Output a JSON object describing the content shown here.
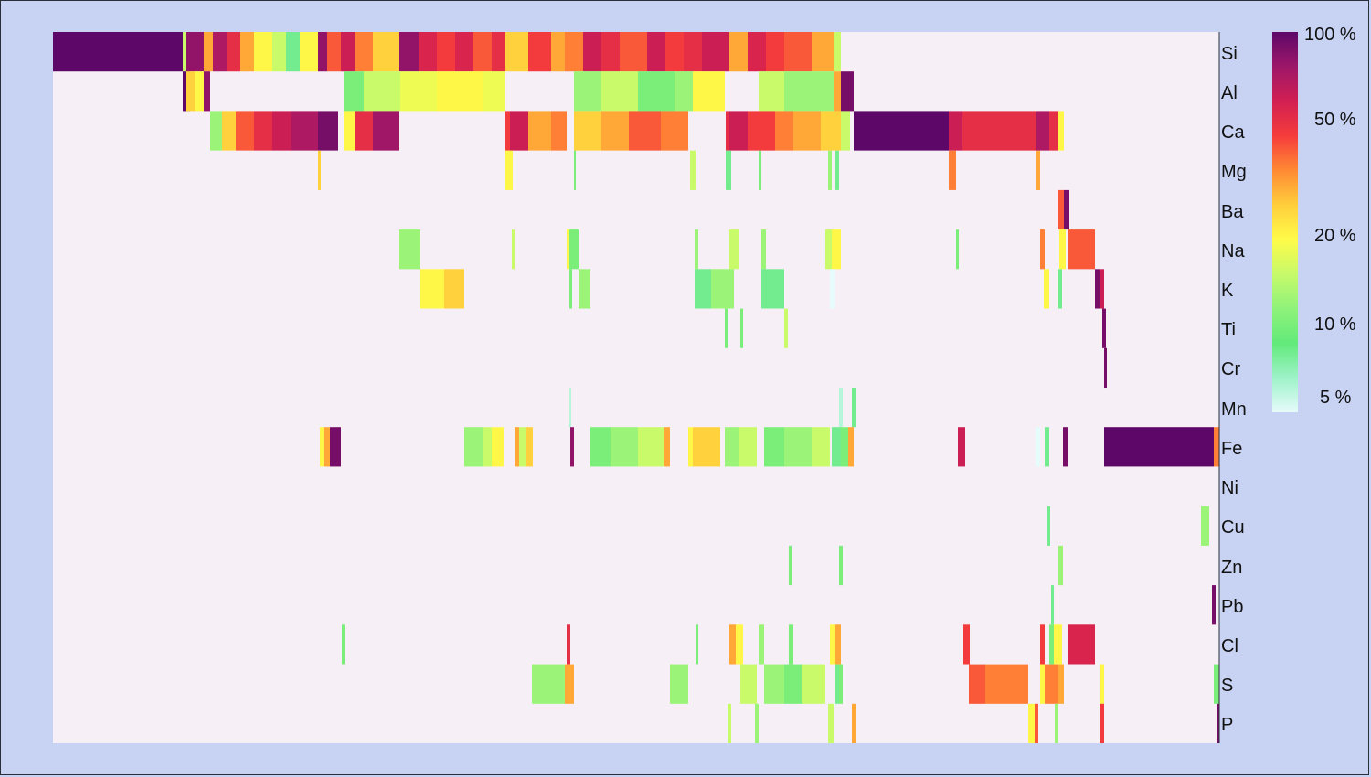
{
  "chart_data": {
    "type": "heatmap",
    "title": "",
    "xlabel": "",
    "ylabel": "",
    "rows": [
      "Si",
      "Al",
      "Ca",
      "Mg",
      "Ba",
      "Na",
      "K",
      "Ti",
      "Cr",
      "Mn",
      "Fe",
      "Ni",
      "Cu",
      "Zn",
      "Pb",
      "Cl",
      "S",
      "P"
    ],
    "x_extent": [
      0,
      1276
    ],
    "value_units": "percent",
    "color_scale": {
      "type": "log",
      "range": [
        5,
        100
      ],
      "ticks": [
        {
          "value": 100,
          "label": "100 %"
        },
        {
          "value": 50,
          "label": "50 %"
        },
        {
          "value": 20,
          "label": "20 %"
        },
        {
          "value": 10,
          "label": "10 %"
        },
        {
          "value": 5,
          "label": "5 %"
        }
      ],
      "colors": [
        "#e6fbfb",
        "#9df2c8",
        "#62ea7a",
        "#8ff27a",
        "#c7fa6a",
        "#fffb48",
        "#ffce3c",
        "#ff8a34",
        "#f53c3c",
        "#d21f52",
        "#9d1769",
        "#5d0868"
      ]
    },
    "segments": {
      "Si": [
        [
          0,
          142,
          100
        ],
        [
          142,
          145,
          15
        ],
        [
          145,
          165,
          80
        ],
        [
          165,
          175,
          30
        ],
        [
          175,
          190,
          70
        ],
        [
          190,
          205,
          50
        ],
        [
          205,
          220,
          30
        ],
        [
          220,
          240,
          20
        ],
        [
          240,
          255,
          15
        ],
        [
          255,
          270,
          8
        ],
        [
          270,
          290,
          20
        ],
        [
          290,
          300,
          80
        ],
        [
          300,
          315,
          40
        ],
        [
          315,
          330,
          60
        ],
        [
          330,
          350,
          35
        ],
        [
          350,
          378,
          25
        ],
        [
          378,
          400,
          80
        ],
        [
          400,
          420,
          55
        ],
        [
          420,
          440,
          45
        ],
        [
          440,
          460,
          55
        ],
        [
          460,
          480,
          40
        ],
        [
          480,
          495,
          50
        ],
        [
          495,
          520,
          25
        ],
        [
          520,
          545,
          45
        ],
        [
          545,
          560,
          30
        ],
        [
          560,
          580,
          35
        ],
        [
          580,
          600,
          60
        ],
        [
          600,
          620,
          50
        ],
        [
          620,
          650,
          40
        ],
        [
          650,
          670,
          60
        ],
        [
          670,
          690,
          45
        ],
        [
          690,
          710,
          50
        ],
        [
          710,
          740,
          60
        ],
        [
          740,
          760,
          30
        ],
        [
          760,
          780,
          55
        ],
        [
          780,
          800,
          45
        ],
        [
          800,
          830,
          40
        ],
        [
          830,
          855,
          30
        ],
        [
          855,
          862,
          15
        ]
      ],
      "Al": [
        [
          142,
          150,
          100
        ],
        [
          145,
          155,
          25
        ],
        [
          155,
          165,
          20
        ],
        [
          165,
          172,
          80
        ],
        [
          318,
          340,
          10
        ],
        [
          340,
          380,
          15
        ],
        [
          380,
          420,
          18
        ],
        [
          420,
          450,
          20
        ],
        [
          450,
          470,
          20
        ],
        [
          470,
          495,
          18
        ],
        [
          570,
          600,
          12
        ],
        [
          600,
          640,
          15
        ],
        [
          640,
          680,
          10
        ],
        [
          680,
          700,
          12
        ],
        [
          700,
          735,
          20
        ],
        [
          772,
          800,
          15
        ],
        [
          800,
          830,
          12
        ],
        [
          830,
          855,
          12
        ],
        [
          855,
          862,
          30
        ],
        [
          862,
          876,
          90
        ]
      ],
      "Ca": [
        [
          172,
          185,
          12
        ],
        [
          185,
          200,
          25
        ],
        [
          200,
          220,
          40
        ],
        [
          220,
          240,
          50
        ],
        [
          240,
          260,
          60
        ],
        [
          260,
          290,
          70
        ],
        [
          290,
          312,
          90
        ],
        [
          318,
          330,
          20
        ],
        [
          330,
          350,
          50
        ],
        [
          350,
          378,
          75
        ],
        [
          495,
          500,
          45
        ],
        [
          500,
          520,
          60
        ],
        [
          520,
          545,
          30
        ],
        [
          545,
          562,
          35
        ],
        [
          570,
          600,
          25
        ],
        [
          600,
          630,
          30
        ],
        [
          630,
          665,
          40
        ],
        [
          665,
          695,
          35
        ],
        [
          736,
          740,
          50
        ],
        [
          740,
          760,
          60
        ],
        [
          760,
          790,
          45
        ],
        [
          790,
          810,
          35
        ],
        [
          810,
          840,
          30
        ],
        [
          840,
          862,
          25
        ],
        [
          862,
          872,
          15
        ],
        [
          876,
          980,
          100
        ],
        [
          980,
          995,
          60
        ],
        [
          995,
          1075,
          50
        ],
        [
          1075,
          1090,
          70
        ],
        [
          1090,
          1100,
          50
        ],
        [
          1100,
          1106,
          20
        ]
      ],
      "Mg": [
        [
          290,
          293,
          25
        ],
        [
          495,
          503,
          20
        ],
        [
          570,
          572,
          10
        ],
        [
          697,
          703,
          15
        ],
        [
          736,
          742,
          8
        ],
        [
          772,
          775,
          10
        ],
        [
          848,
          852,
          12
        ],
        [
          856,
          860,
          8
        ],
        [
          980,
          988,
          35
        ],
        [
          1076,
          1080,
          30
        ]
      ],
      "Ba": [
        [
          1100,
          1106,
          40
        ],
        [
          1106,
          1112,
          90
        ]
      ],
      "Na": [
        [
          378,
          402,
          12
        ],
        [
          502,
          505,
          15
        ],
        [
          562,
          565,
          20
        ],
        [
          565,
          575,
          10
        ],
        [
          702,
          706,
          12
        ],
        [
          740,
          750,
          15
        ],
        [
          775,
          780,
          12
        ],
        [
          845,
          852,
          15
        ],
        [
          852,
          862,
          20
        ],
        [
          988,
          991,
          10
        ],
        [
          1080,
          1085,
          35
        ],
        [
          1101,
          1108,
          20
        ],
        [
          1110,
          1140,
          40
        ]
      ],
      "K": [
        [
          402,
          428,
          20
        ],
        [
          428,
          450,
          25
        ],
        [
          565,
          568,
          10
        ],
        [
          575,
          588,
          12
        ],
        [
          702,
          720,
          8
        ],
        [
          720,
          745,
          12
        ],
        [
          775,
          800,
          8
        ],
        [
          850,
          856,
          5
        ],
        [
          1084,
          1090,
          20
        ],
        [
          1100,
          1104,
          8
        ],
        [
          1140,
          1145,
          90
        ],
        [
          1145,
          1150,
          60
        ]
      ],
      "Ti": [
        [
          735,
          738,
          10
        ],
        [
          752,
          755,
          10
        ],
        [
          800,
          804,
          15
        ],
        [
          1148,
          1152,
          90
        ]
      ],
      "Cr": [
        [
          1150,
          1153,
          90
        ]
      ],
      "Mn": [
        [
          564,
          567,
          6
        ],
        [
          860,
          864,
          6
        ],
        [
          874,
          878,
          8
        ]
      ],
      "Fe": [
        [
          292,
          296,
          20
        ],
        [
          296,
          303,
          30
        ],
        [
          303,
          315,
          90
        ],
        [
          450,
          470,
          12
        ],
        [
          470,
          480,
          15
        ],
        [
          480,
          493,
          20
        ],
        [
          505,
          510,
          30
        ],
        [
          510,
          518,
          15
        ],
        [
          518,
          525,
          25
        ],
        [
          566,
          570,
          80
        ],
        [
          588,
          610,
          10
        ],
        [
          610,
          640,
          12
        ],
        [
          640,
          668,
          15
        ],
        [
          668,
          675,
          30
        ],
        [
          695,
          700,
          20
        ],
        [
          700,
          730,
          25
        ],
        [
          735,
          750,
          12
        ],
        [
          750,
          770,
          15
        ],
        [
          778,
          800,
          10
        ],
        [
          800,
          830,
          12
        ],
        [
          830,
          850,
          15
        ],
        [
          852,
          862,
          8
        ],
        [
          862,
          870,
          10
        ],
        [
          870,
          876,
          30
        ],
        [
          990,
          998,
          60
        ],
        [
          1075,
          1080,
          5
        ],
        [
          1085,
          1090,
          8
        ],
        [
          1105,
          1110,
          90
        ],
        [
          1150,
          1270,
          100
        ],
        [
          1270,
          1276,
          35
        ]
      ],
      "Ni": [],
      "Cu": [
        [
          1088,
          1091,
          8
        ],
        [
          1256,
          1265,
          12
        ]
      ],
      "Zn": [
        [
          805,
          808,
          10
        ],
        [
          860,
          864,
          10
        ],
        [
          1100,
          1105,
          12
        ]
      ],
      "Pb": [
        [
          1092,
          1095,
          8
        ],
        [
          1268,
          1272,
          90
        ]
      ],
      "Cl": [
        [
          316,
          319,
          10
        ],
        [
          562,
          566,
          50
        ],
        [
          703,
          706,
          10
        ],
        [
          740,
          747,
          30
        ],
        [
          747,
          755,
          20
        ],
        [
          772,
          778,
          12
        ],
        [
          805,
          810,
          10
        ],
        [
          850,
          856,
          20
        ],
        [
          856,
          862,
          30
        ],
        [
          996,
          1003,
          45
        ],
        [
          1080,
          1085,
          45
        ],
        [
          1090,
          1095,
          10
        ],
        [
          1095,
          1104,
          20
        ],
        [
          1110,
          1140,
          55
        ]
      ],
      "S": [
        [
          524,
          560,
          12
        ],
        [
          560,
          570,
          30
        ],
        [
          675,
          695,
          12
        ],
        [
          752,
          770,
          15
        ],
        [
          778,
          800,
          12
        ],
        [
          800,
          820,
          10
        ],
        [
          820,
          845,
          15
        ],
        [
          856,
          860,
          8
        ],
        [
          860,
          864,
          10
        ],
        [
          1002,
          1020,
          40
        ],
        [
          1020,
          1067,
          35
        ],
        [
          1080,
          1085,
          20
        ],
        [
          1085,
          1100,
          35
        ],
        [
          1100,
          1106,
          30
        ],
        [
          1145,
          1150,
          20
        ],
        [
          1270,
          1276,
          10
        ]
      ],
      "P": [
        [
          738,
          742,
          15
        ],
        [
          768,
          772,
          12
        ],
        [
          848,
          854,
          15
        ],
        [
          874,
          878,
          30
        ],
        [
          1067,
          1074,
          20
        ],
        [
          1074,
          1078,
          40
        ],
        [
          1096,
          1100,
          12
        ],
        [
          1145,
          1150,
          45
        ],
        [
          1274,
          1276,
          90
        ]
      ]
    }
  }
}
